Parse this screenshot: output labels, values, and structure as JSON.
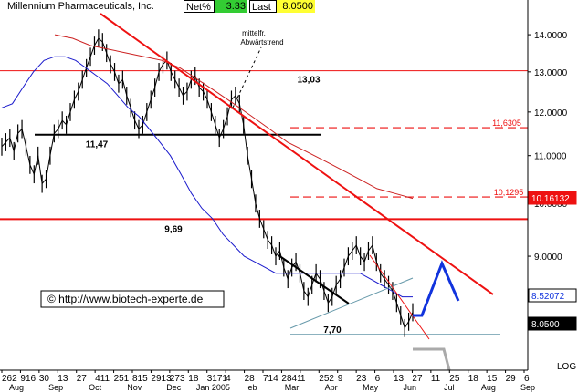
{
  "header": {
    "name": "Millennium Pharmaceuticals, Inc.",
    "net_label": "Net%",
    "net_value": "3.33",
    "last_label": "Last",
    "last_value": "8.0500"
  },
  "watermark": "© http://www.biotech-experte.de",
  "scale_label": "LOG",
  "colors": {
    "price": "#000000",
    "ma_fast": "#1a1acc",
    "ma_slow": "#cc2222",
    "trend": "#ee1111",
    "forecast": "#1133dd",
    "support": "#6699aa",
    "down_sign": "#aaaaaa"
  },
  "chart_data": {
    "type": "line",
    "scale": "log",
    "ylim": [
      7.45,
      14.6
    ],
    "y_ticks": [
      "14.0000",
      "13.0000",
      "12.0000",
      "11.0000",
      "10.0000",
      "9.0000"
    ],
    "x_tick_labels": [
      "262",
      "916",
      "30",
      "13",
      "27",
      "411",
      "251",
      "815",
      "2913",
      "273",
      "18",
      "3171",
      "4",
      "28",
      "714",
      "2841",
      "1",
      "252",
      "9",
      "23",
      "6",
      "13",
      "27",
      "11",
      "25",
      "18",
      "15",
      "29",
      "6"
    ],
    "x_month_labels": [
      "Aug",
      "Sep",
      "Oct",
      "Nov",
      "Dec",
      "Jan 2005",
      "eb",
      "Mar",
      "Apr",
      "May",
      "Jun",
      "Jul",
      "Aug",
      "Sep"
    ],
    "series": [
      {
        "values": [
          11.2,
          11.3,
          11.4,
          11.1,
          11.5,
          11.6,
          11.2,
          10.8,
          10.6,
          11.0,
          10.4,
          10.5,
          11.0,
          11.5,
          11.6,
          11.8,
          11.7,
          12.0,
          12.3,
          12.5,
          12.8,
          13.1,
          13.4,
          13.7,
          13.9,
          13.8,
          13.5,
          13.2,
          13.0,
          12.7,
          12.8,
          12.4,
          12.1,
          11.8,
          11.6,
          11.7,
          12.0,
          12.3,
          12.6,
          13.0,
          13.2,
          13.3,
          13.0,
          12.8,
          12.6,
          12.4,
          12.5,
          12.8,
          12.9,
          12.6,
          12.5,
          12.3,
          12.0,
          11.7,
          11.4,
          11.6,
          11.9,
          12.3,
          12.4,
          12.2,
          11.7,
          11.0,
          10.5,
          10.0,
          9.7,
          9.5,
          9.3,
          9.2,
          9.0,
          9.1,
          8.8,
          8.6,
          8.8,
          8.9,
          8.7,
          8.4,
          8.3,
          8.5,
          8.7,
          8.6,
          8.4,
          8.2,
          8.3,
          8.5,
          8.6,
          8.8,
          9.0,
          9.1,
          9.2,
          9.0,
          8.9,
          9.1,
          9.2,
          8.9,
          8.7,
          8.6,
          8.5,
          8.4,
          8.2,
          8.0,
          7.8,
          7.9,
          8.05
        ]
      },
      {
        "values": [
          12.1,
          12.2,
          12.6,
          13.0,
          13.3,
          13.4,
          13.4,
          13.3,
          13.1,
          12.9,
          12.7,
          12.4,
          12.1,
          11.9,
          11.6,
          11.3,
          11.0,
          10.6,
          10.2,
          9.9,
          9.7,
          9.4,
          9.2,
          9.0,
          8.9,
          8.8,
          8.7,
          8.7,
          8.7,
          8.7,
          8.7,
          8.7,
          8.7,
          8.7,
          8.7,
          8.6,
          8.5,
          8.4,
          8.3,
          8.3
        ]
      },
      {
        "values": [
          14.0,
          13.9,
          13.7,
          13.6,
          13.5,
          13.4,
          13.3,
          13.1,
          12.8,
          12.5,
          12.2,
          11.9,
          11.6,
          11.3,
          11.1,
          10.9,
          10.7,
          10.5,
          10.3,
          10.2,
          10.1
        ]
      }
    ],
    "levels": [
      {
        "value": 13.03,
        "label": "13,03"
      },
      {
        "value": 11.47,
        "label": "11,47"
      },
      {
        "value": 9.69,
        "label": "9,69"
      },
      {
        "value": 7.7,
        "label": "7,70"
      },
      {
        "value": 11.6305,
        "label": "11,6305"
      },
      {
        "value": 10.1295,
        "label": "10,1295"
      }
    ],
    "annotations": [
      "mittelfr.",
      "Abwärtstrend"
    ],
    "price_tags": [
      "10.16132",
      "8.52072",
      "8.0500"
    ]
  }
}
